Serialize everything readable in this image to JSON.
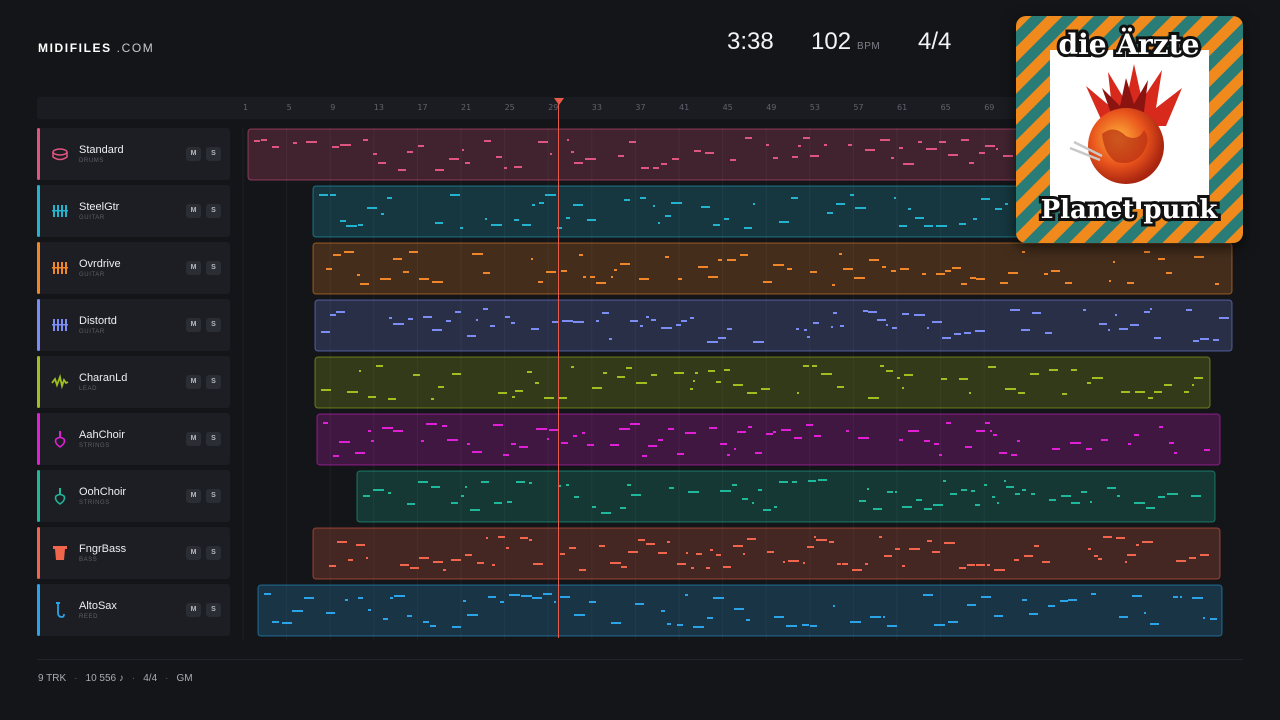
{
  "brand": {
    "name": "MIDIFILES",
    "suffix": ".COM"
  },
  "stats": {
    "duration": "3:38",
    "tempo": "102",
    "tempo_unit": "BPM",
    "meter": "4/4"
  },
  "cover": {
    "artist": "die Ärzte",
    "title": "Planet punk",
    "colors": {
      "stripe_orange": "#f08a1d",
      "stripe_teal": "#2a7c76",
      "globe": "#e2401b",
      "mohawk": "#d8291d"
    }
  },
  "ruler": {
    "bars": [
      "1",
      "5",
      "9",
      "13",
      "17",
      "21",
      "25",
      "29",
      "33",
      "37",
      "41",
      "45",
      "49",
      "53",
      "57",
      "61",
      "65",
      "69"
    ]
  },
  "tracks": [
    {
      "name": "Standard",
      "category": "DRUMS",
      "color": "#e0557f",
      "icon": "drum-icon",
      "mute": "M",
      "solo": "S"
    },
    {
      "name": "SteelGtr",
      "category": "GUITAR",
      "color": "#22b3cf",
      "icon": "guitar-icon",
      "mute": "M",
      "solo": "S"
    },
    {
      "name": "Ovrdrive",
      "category": "GUITAR",
      "color": "#f0862a",
      "icon": "guitar-icon",
      "mute": "M",
      "solo": "S"
    },
    {
      "name": "Distortd",
      "category": "GUITAR",
      "color": "#7b8cf5",
      "icon": "guitar-icon",
      "mute": "M",
      "solo": "S"
    },
    {
      "name": "CharanLd",
      "category": "LEAD",
      "color": "#9fbf1f",
      "icon": "wave-icon",
      "mute": "M",
      "solo": "S"
    },
    {
      "name": "AahChoir",
      "category": "STRINGS",
      "color": "#e020d6",
      "icon": "violin-icon",
      "mute": "M",
      "solo": "S"
    },
    {
      "name": "OohChoir",
      "category": "STRINGS",
      "color": "#1eb89b",
      "icon": "violin-icon",
      "mute": "M",
      "solo": "S"
    },
    {
      "name": "FngrBass",
      "category": "BASS",
      "color": "#f0654b",
      "icon": "bass-icon",
      "mute": "M",
      "solo": "S"
    },
    {
      "name": "AltoSax",
      "category": "REED",
      "color": "#2aa3e8",
      "icon": "sax-icon",
      "mute": "M",
      "solo": "S"
    }
  ],
  "footer": {
    "tracks": "9 TRK",
    "notes": "10 556 ♪",
    "meter": "4/4",
    "standard": "GM"
  }
}
